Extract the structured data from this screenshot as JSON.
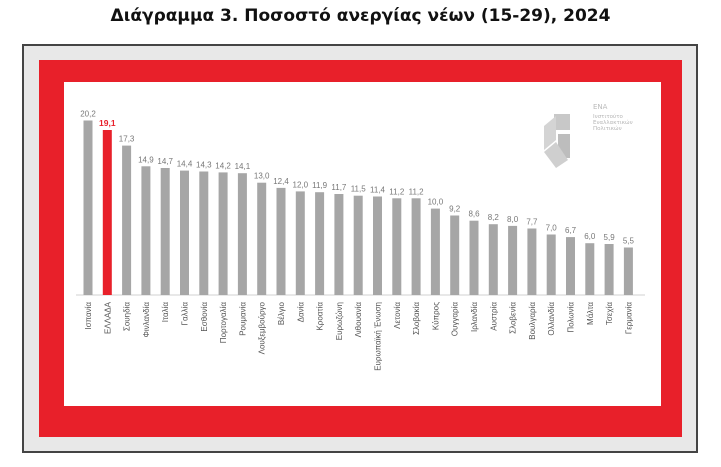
{
  "title": "Διάγραμμα 3. Ποσοστό ανεργίας νέων (15-29), 2024",
  "logo": {
    "name": "ΕΝΑ",
    "subtitle_lines": [
      "Ινστιτούτο",
      "Εναλλακτικών",
      "Πολιτικών"
    ]
  },
  "colors": {
    "bar": "#a6a6a6",
    "highlight": "#e8202a",
    "frame": "#e8202a"
  },
  "chart_data": {
    "type": "bar",
    "title": "Διάγραμμα 3. Ποσοστό ανεργίας νέων (15-29), 2024",
    "xlabel": "",
    "ylabel": "",
    "ylim": [
      0,
      22
    ],
    "grid": false,
    "legend": "none",
    "highlight_category": "ΕΛΛΑΔΑ",
    "categories": [
      "Ισπανία",
      "ΕΛΛΑΔΑ",
      "Σουηδία",
      "Φινλανδία",
      "Ιταλία",
      "Γαλλία",
      "Εσθονία",
      "Πορτογαλία",
      "Ρουμανία",
      "Λουξεμβούργο",
      "Βέλγιο",
      "Δανία",
      "Κροατία",
      "Ευρωζώνη",
      "Λιθουανία",
      "Ευρωπαϊκή Ένωση",
      "Λετονία",
      "Σλοβακία",
      "Κύπρος",
      "Ουγγαρία",
      "Ιρλανδία",
      "Αυστρία",
      "Σλοβενία",
      "Βουλγαρία",
      "Ολλανδία",
      "Πολωνία",
      "Μάλτα",
      "Τσεχία",
      "Γερμανία"
    ],
    "values": [
      20.2,
      19.1,
      17.3,
      14.9,
      14.7,
      14.4,
      14.3,
      14.2,
      14.1,
      13.0,
      12.4,
      12.0,
      11.9,
      11.7,
      11.5,
      11.4,
      11.2,
      11.2,
      10.0,
      9.2,
      8.6,
      8.2,
      8.0,
      7.7,
      7.0,
      6.7,
      6.0,
      5.9,
      5.5
    ],
    "value_labels": [
      "20,2",
      "19,1",
      "17,3",
      "14,9",
      "14,7",
      "14,4",
      "14,3",
      "14,2",
      "14,1",
      "13,0",
      "12,4",
      "12,0",
      "11,9",
      "11,7",
      "11,5",
      "11,4",
      "11,2",
      "11,2",
      "10,0",
      "9,2",
      "8,6",
      "8,2",
      "8,0",
      "7,7",
      "7,0",
      "6,7",
      "6,0",
      "5,9",
      "5,5"
    ]
  }
}
